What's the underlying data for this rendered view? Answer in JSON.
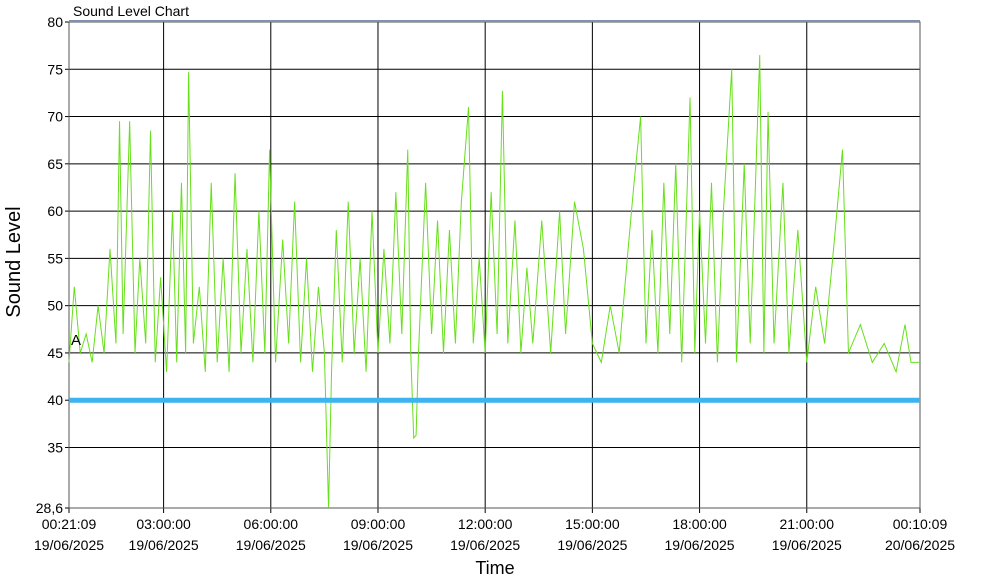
{
  "chart_data": {
    "type": "line",
    "title": "Sound Level Chart",
    "y_label": "Sound Level",
    "x_label": "Time",
    "color": "#66e01a",
    "reference_line": {
      "value": 40,
      "color": "#3cb4ef"
    },
    "annotation": {
      "text": "A",
      "y": 45
    },
    "xlim": [
      "2025-06-19T00:21:09",
      "2025-06-20T00:10:09"
    ],
    "xticks": [
      {
        "value": "2025-06-19T00:21:09",
        "label": [
          "00:21:09",
          "19/06/2025"
        ]
      },
      {
        "value": "2025-06-19T03:00:00",
        "label": [
          "03:00:00",
          "19/06/2025"
        ]
      },
      {
        "value": "2025-06-19T06:00:00",
        "label": [
          "06:00:00",
          "19/06/2025"
        ]
      },
      {
        "value": "2025-06-19T09:00:00",
        "label": [
          "09:00:00",
          "19/06/2025"
        ]
      },
      {
        "value": "2025-06-19T12:00:00",
        "label": [
          "12:00:00",
          "19/06/2025"
        ]
      },
      {
        "value": "2025-06-19T15:00:00",
        "label": [
          "15:00:00",
          "19/06/2025"
        ]
      },
      {
        "value": "2025-06-19T18:00:00",
        "label": [
          "18:00:00",
          "19/06/2025"
        ]
      },
      {
        "value": "2025-06-19T21:00:00",
        "label": [
          "21:00:00",
          "19/06/2025"
        ]
      },
      {
        "value": "2025-06-20T00:10:09",
        "label": [
          "00:10:09",
          "20/06/2025"
        ]
      }
    ],
    "ylim": [
      28.6,
      80
    ],
    "yticks": [
      {
        "value": 28.6,
        "label": "28,6"
      },
      35,
      40,
      45,
      50,
      55,
      60,
      65,
      70,
      75,
      80
    ],
    "grid": true,
    "x": [
      "2025-06-19T00:21:09",
      "2025-06-19T00:30",
      "2025-06-19T00:40",
      "2025-06-19T00:50",
      "2025-06-19T01:00",
      "2025-06-19T01:10",
      "2025-06-19T01:20",
      "2025-06-19T01:30",
      "2025-06-19T01:40",
      "2025-06-19T01:46",
      "2025-06-19T01:52",
      "2025-06-19T02:03",
      "2025-06-19T02:12",
      "2025-06-19T02:20",
      "2025-06-19T02:30",
      "2025-06-19T02:38",
      "2025-06-19T02:46",
      "2025-06-19T02:55",
      "2025-06-19T03:05",
      "2025-06-19T03:15",
      "2025-06-19T03:22",
      "2025-06-19T03:30",
      "2025-06-19T03:37",
      "2025-06-19T03:42",
      "2025-06-19T03:50",
      "2025-06-19T04:00",
      "2025-06-19T04:10",
      "2025-06-19T04:20",
      "2025-06-19T04:30",
      "2025-06-19T04:40",
      "2025-06-19T04:50",
      "2025-06-19T05:00",
      "2025-06-19T05:10",
      "2025-06-19T05:20",
      "2025-06-19T05:30",
      "2025-06-19T05:40",
      "2025-06-19T05:50",
      "2025-06-19T05:58",
      "2025-06-19T06:08",
      "2025-06-19T06:20",
      "2025-06-19T06:30",
      "2025-06-19T06:40",
      "2025-06-19T06:50",
      "2025-06-19T07:00",
      "2025-06-19T07:10",
      "2025-06-19T07:20",
      "2025-06-19T07:30",
      "2025-06-19T07:37",
      "2025-06-19T07:42",
      "2025-06-19T07:50",
      "2025-06-19T08:00",
      "2025-06-19T08:10",
      "2025-06-19T08:20",
      "2025-06-19T08:30",
      "2025-06-19T08:40",
      "2025-06-19T08:50",
      "2025-06-19T09:00",
      "2025-06-19T09:10",
      "2025-06-19T09:20",
      "2025-06-19T09:30",
      "2025-06-19T09:40",
      "2025-06-19T09:50",
      "2025-06-19T09:55",
      "2025-06-19T10:00",
      "2025-06-19T10:04",
      "2025-06-19T10:08",
      "2025-06-19T10:20",
      "2025-06-19T10:30",
      "2025-06-19T10:40",
      "2025-06-19T10:50",
      "2025-06-19T11:00",
      "2025-06-19T11:10",
      "2025-06-19T11:20",
      "2025-06-19T11:32",
      "2025-06-19T11:40",
      "2025-06-19T11:50",
      "2025-06-19T12:00",
      "2025-06-19T12:10",
      "2025-06-19T12:20",
      "2025-06-19T12:29",
      "2025-06-19T12:38",
      "2025-06-19T12:50",
      "2025-06-19T13:00",
      "2025-06-19T13:10",
      "2025-06-19T13:20",
      "2025-06-19T13:35",
      "2025-06-19T13:50",
      "2025-06-19T14:05",
      "2025-06-19T14:15",
      "2025-06-19T14:30",
      "2025-06-19T14:45",
      "2025-06-19T15:00",
      "2025-06-19T15:15",
      "2025-06-19T15:30",
      "2025-06-19T15:45",
      "2025-06-19T16:00",
      "2025-06-19T16:10",
      "2025-06-19T16:21",
      "2025-06-19T16:30",
      "2025-06-19T16:40",
      "2025-06-19T16:50",
      "2025-06-19T17:00",
      "2025-06-19T17:10",
      "2025-06-19T17:20",
      "2025-06-19T17:30",
      "2025-06-19T17:44",
      "2025-06-19T17:52",
      "2025-06-19T18:00",
      "2025-06-19T18:10",
      "2025-06-19T18:20",
      "2025-06-19T18:30",
      "2025-06-19T18:40",
      "2025-06-19T18:54",
      "2025-06-19T19:02",
      "2025-06-19T19:15",
      "2025-06-19T19:25",
      "2025-06-19T19:41",
      "2025-06-19T19:48",
      "2025-06-19T19:55",
      "2025-06-19T20:05",
      "2025-06-19T20:20",
      "2025-06-19T20:30",
      "2025-06-19T20:45",
      "2025-06-19T21:00",
      "2025-06-19T21:15",
      "2025-06-19T21:30",
      "2025-06-19T21:45",
      "2025-06-19T22:00",
      "2025-06-19T22:10",
      "2025-06-19T22:30",
      "2025-06-19T22:50",
      "2025-06-19T23:10",
      "2025-06-19T23:30",
      "2025-06-19T23:45",
      "2025-06-19T23:55",
      "2025-06-20T00:10:09"
    ],
    "values": [
      44,
      52,
      45,
      47,
      44,
      50,
      45,
      56,
      46,
      69.5,
      47,
      69.5,
      45,
      55,
      46,
      68.5,
      44,
      53,
      43,
      60,
      44,
      63,
      45,
      74.7,
      46,
      52,
      43,
      63,
      44,
      55,
      43,
      64,
      45,
      56,
      44,
      60,
      45,
      66.5,
      44,
      57,
      46,
      61,
      44,
      55,
      43,
      52,
      45,
      28.6,
      43,
      58,
      44,
      61,
      45,
      55,
      43,
      60,
      45,
      56,
      46,
      62,
      47,
      66.5,
      45,
      36,
      36.3,
      45,
      63,
      47,
      59,
      45,
      58,
      46,
      61,
      71,
      46,
      55,
      45,
      62,
      47,
      72.7,
      46,
      59,
      45,
      54,
      46,
      59,
      45,
      60,
      47,
      61,
      56,
      46,
      44,
      50,
      45,
      56,
      63,
      70,
      46,
      58,
      45,
      63,
      47,
      65,
      44,
      72,
      45,
      60,
      46,
      63,
      44,
      60,
      75,
      44,
      65,
      46,
      76.5,
      45,
      70.5,
      46,
      63,
      45,
      58,
      44,
      52,
      46,
      56,
      66.5,
      45,
      48,
      44,
      46,
      43,
      48,
      44,
      44
    ]
  }
}
